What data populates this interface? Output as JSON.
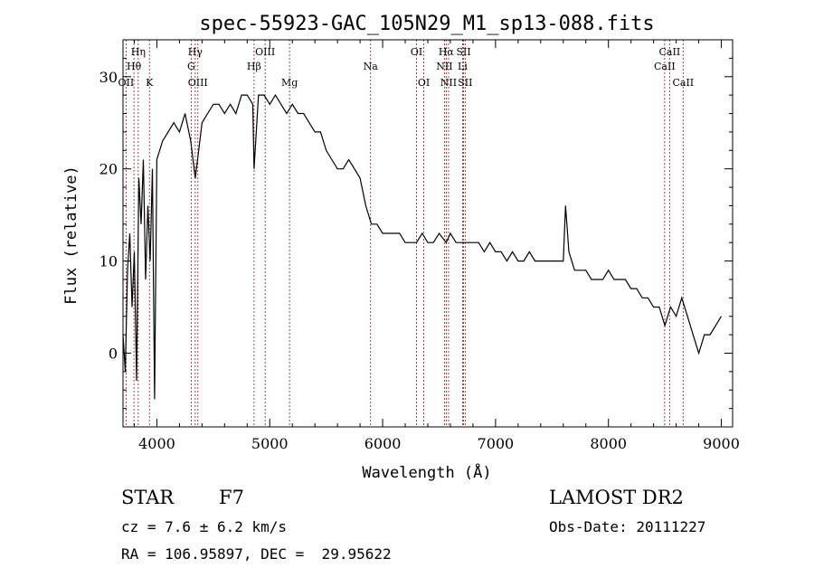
{
  "chart_data": {
    "type": "line",
    "title": "spec-55923-GAC_105N29_M1_sp13-088.fits",
    "xlabel": "Wavelength (Å)",
    "ylabel": "Flux (relative)",
    "xlim": [
      3700,
      9100
    ],
    "ylim": [
      -8,
      34
    ],
    "xticks": [
      4000,
      5000,
      6000,
      7000,
      8000,
      9000
    ],
    "yticks": [
      0,
      10,
      20,
      30
    ],
    "grid": false,
    "line_color": "#000000",
    "marker_color": "#8b1a1a",
    "series": [
      {
        "x": [
          3700,
          3720,
          3740,
          3760,
          3780,
          3800,
          3820,
          3840,
          3860,
          3880,
          3900,
          3920,
          3940,
          3960,
          3980,
          4000,
          4050,
          4100,
          4150,
          4200,
          4250,
          4300,
          4340,
          4400,
          4450,
          4500,
          4550,
          4600,
          4650,
          4700,
          4750,
          4800,
          4850,
          4861,
          4900,
          4950,
          5000,
          5050,
          5100,
          5150,
          5200,
          5250,
          5300,
          5350,
          5400,
          5450,
          5500,
          5550,
          5600,
          5650,
          5700,
          5750,
          5800,
          5850,
          5900,
          5950,
          6000,
          6050,
          6100,
          6150,
          6200,
          6250,
          6300,
          6350,
          6400,
          6450,
          6500,
          6563,
          6600,
          6650,
          6700,
          6750,
          6800,
          6850,
          6900,
          6950,
          7000,
          7050,
          7100,
          7150,
          7200,
          7250,
          7300,
          7350,
          7400,
          7450,
          7500,
          7550,
          7600,
          7620,
          7650,
          7700,
          7750,
          7800,
          7850,
          7900,
          7950,
          8000,
          8050,
          8100,
          8150,
          8200,
          8250,
          8300,
          8350,
          8400,
          8450,
          8500,
          8550,
          8600,
          8650,
          8700,
          8750,
          8800,
          8850,
          8900,
          8950,
          9000
        ],
        "y": [
          2,
          -2,
          9,
          13,
          5,
          11,
          -3,
          19,
          14,
          21,
          8,
          16,
          10,
          20,
          -5,
          21,
          23,
          24,
          25,
          24,
          26,
          23,
          19,
          25,
          26,
          27,
          27,
          26,
          27,
          26,
          28,
          28,
          27,
          20,
          28,
          28,
          27,
          28,
          27,
          26,
          27,
          26,
          26,
          25,
          24,
          24,
          22,
          21,
          20,
          20,
          21,
          20,
          19,
          16,
          14,
          14,
          13,
          13,
          13,
          13,
          12,
          12,
          12,
          13,
          12,
          12,
          13,
          12,
          13,
          12,
          12,
          12,
          12,
          12,
          11,
          12,
          11,
          11,
          10,
          11,
          10,
          10,
          11,
          10,
          10,
          10,
          10,
          10,
          10,
          16,
          11,
          9,
          9,
          9,
          8,
          8,
          8,
          9,
          8,
          8,
          8,
          7,
          7,
          6,
          6,
          5,
          5,
          3,
          5,
          4,
          6,
          4,
          2,
          0,
          2,
          2,
          3,
          4
        ]
      }
    ],
    "lines": [
      {
        "label": "Hη",
        "x": 3835,
        "row": 0
      },
      {
        "label": "Hθ",
        "x": 3797,
        "row": 1
      },
      {
        "label": "OII",
        "x": 3727,
        "row": 2
      },
      {
        "label": "K",
        "x": 3934,
        "row": 2
      },
      {
        "label": "Hγ",
        "x": 4340,
        "row": 0
      },
      {
        "label": "G",
        "x": 4304,
        "row": 1
      },
      {
        "label": "OIII",
        "x": 4363,
        "row": 2
      },
      {
        "label": "OIII",
        "x": 4959,
        "row": 0
      },
      {
        "label": "Hβ",
        "x": 4861,
        "row": 1
      },
      {
        "label": "Mg",
        "x": 5175,
        "row": 2
      },
      {
        "label": "Na",
        "x": 5893,
        "row": 1
      },
      {
        "label": "OI",
        "x": 6300,
        "row": 0
      },
      {
        "label": "OI",
        "x": 6364,
        "row": 2
      },
      {
        "label": "Hα",
        "x": 6563,
        "row": 0
      },
      {
        "label": "NII",
        "x": 6548,
        "row": 1
      },
      {
        "label": "NII",
        "x": 6584,
        "row": 2
      },
      {
        "label": "SII",
        "x": 6717,
        "row": 0
      },
      {
        "label": "Li",
        "x": 6708,
        "row": 1
      },
      {
        "label": "SII",
        "x": 6731,
        "row": 2
      },
      {
        "label": "CaII",
        "x": 8542,
        "row": 0
      },
      {
        "label": "CaII",
        "x": 8498,
        "row": 1
      },
      {
        "label": "CaII",
        "x": 8662,
        "row": 2
      }
    ]
  },
  "info": {
    "object_class": "STAR",
    "subclass": "F7",
    "survey": "LAMOST DR2",
    "cz": "cz = 7.6 ± 6.2 km/s",
    "obs_date": "Obs-Date: 20111227",
    "coords": "RA = 106.95897, DEC =  29.95622"
  }
}
